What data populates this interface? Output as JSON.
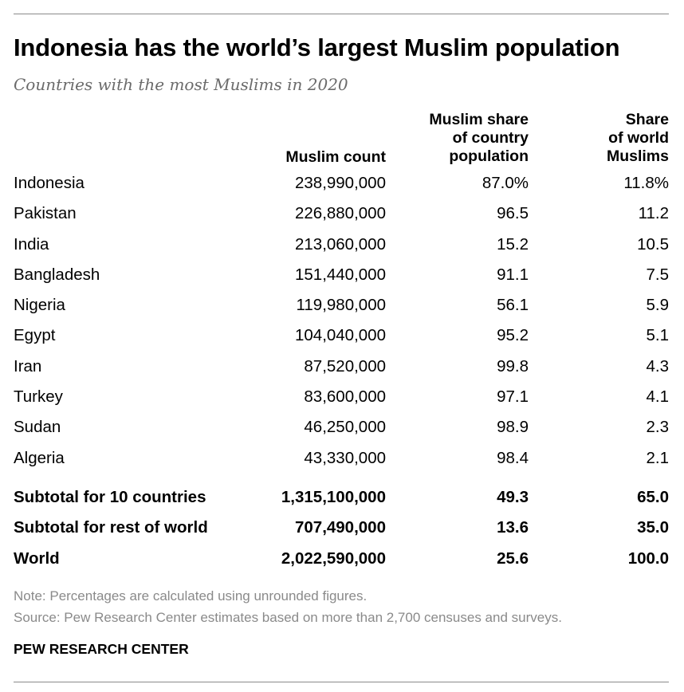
{
  "header": {
    "title": "Indonesia has the world’s largest Muslim population",
    "subtitle": "Countries with the most Muslims in 2020"
  },
  "chart_data": {
    "type": "table",
    "columns": [
      "",
      "Muslim count",
      "Muslim share\nof country\npopulation",
      "Share\nof world\nMuslims"
    ],
    "rows": [
      [
        "Indonesia",
        "238,990,000",
        "87.0%",
        "11.8%"
      ],
      [
        "Pakistan",
        "226,880,000",
        "96.5",
        "11.2"
      ],
      [
        "India",
        "213,060,000",
        "15.2",
        "10.5"
      ],
      [
        "Bangladesh",
        "151,440,000",
        "91.1",
        "7.5"
      ],
      [
        "Nigeria",
        "119,980,000",
        "56.1",
        "5.9"
      ],
      [
        "Egypt",
        "104,040,000",
        "95.2",
        "5.1"
      ],
      [
        "Iran",
        "87,520,000",
        "99.8",
        "4.3"
      ],
      [
        "Turkey",
        "83,600,000",
        "97.1",
        "4.1"
      ],
      [
        "Sudan",
        "46,250,000",
        "98.9",
        "2.3"
      ],
      [
        "Algeria",
        "43,330,000",
        "98.4",
        "2.1"
      ]
    ],
    "totals": [
      [
        "Subtotal for 10 countries",
        "1,315,100,000",
        "49.3",
        "65.0"
      ],
      [
        "Subtotal for rest of world",
        "707,490,000",
        "13.6",
        "35.0"
      ],
      [
        "World",
        "2,022,590,000",
        "25.6",
        "100.0"
      ]
    ]
  },
  "footer": {
    "note": "Note: Percentages are calculated using unrounded figures.",
    "source": "Source: Pew Research Center estimates based on more than 2,700 censuses and surveys.",
    "brand": "PEW RESEARCH CENTER"
  }
}
